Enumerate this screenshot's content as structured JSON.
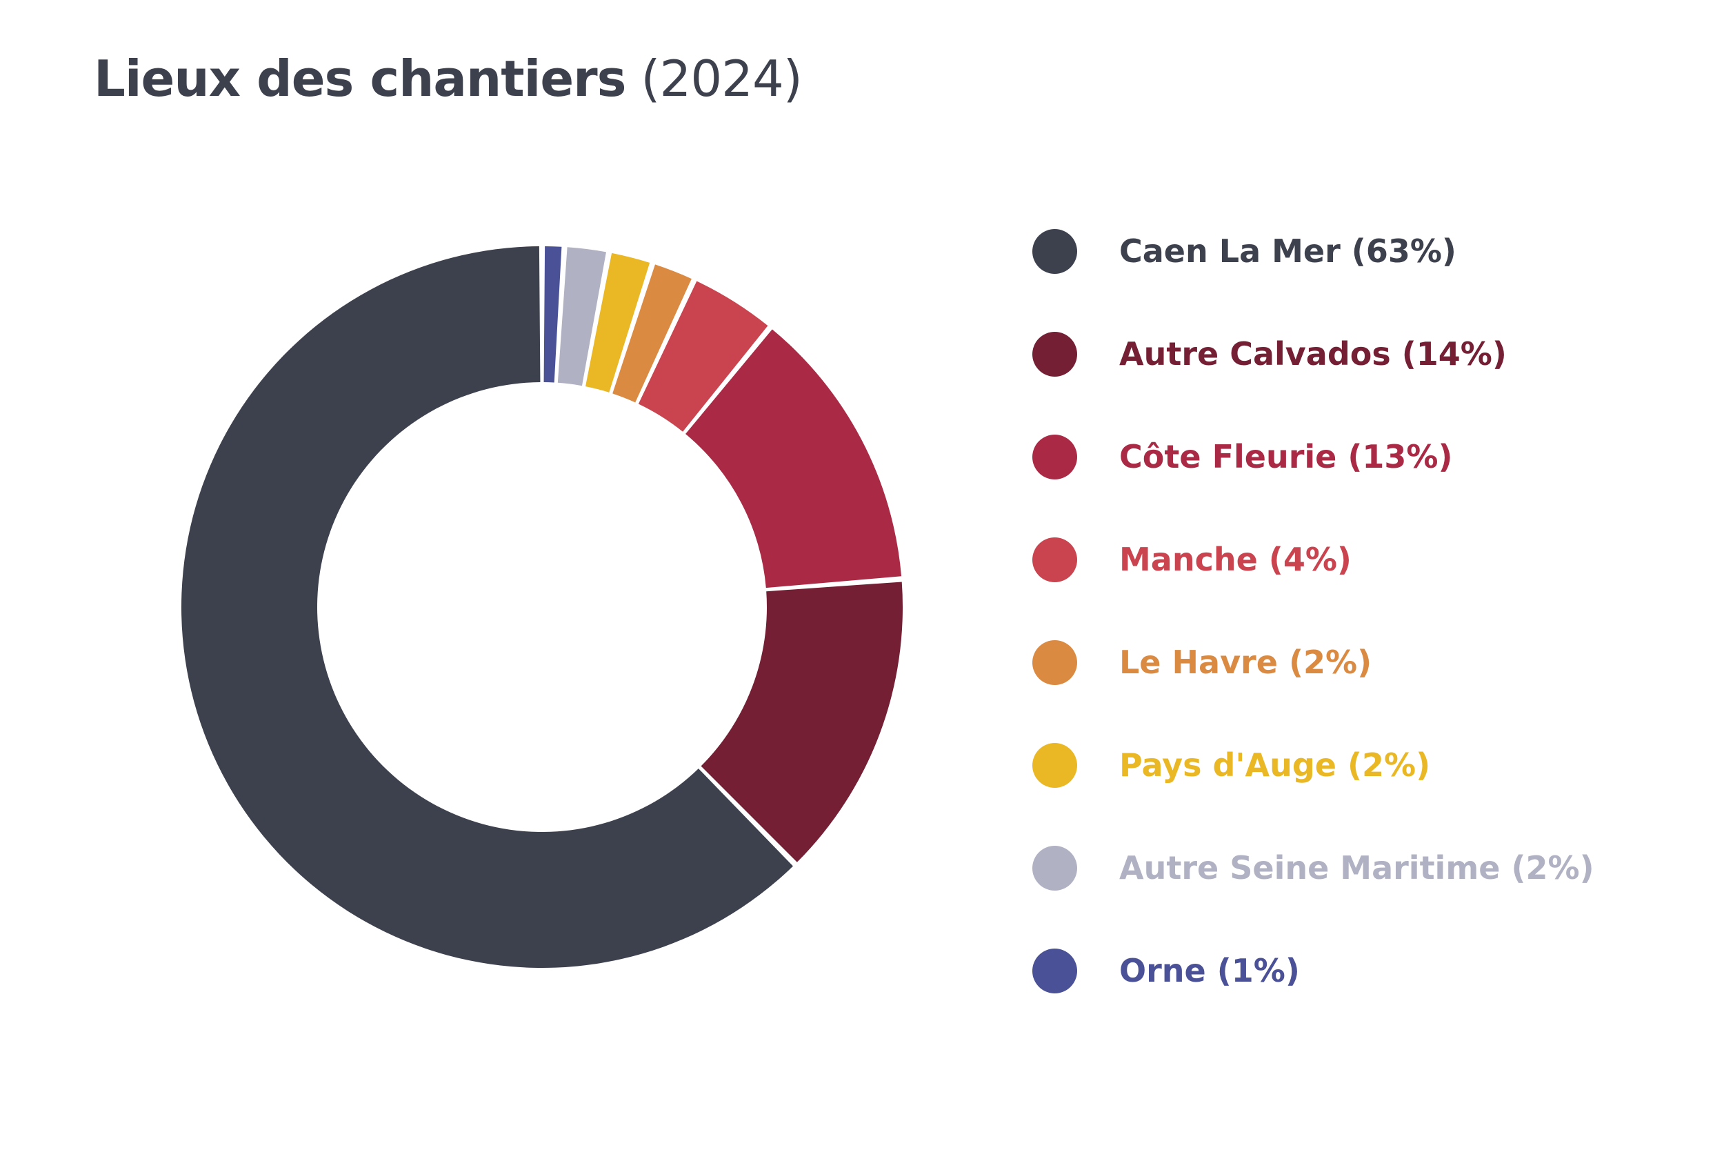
{
  "chart_data": {
    "type": "pie",
    "variant": "donut",
    "title": "Lieux des chantiers",
    "title_year": "(2024)",
    "unit": "%",
    "slices": [
      {
        "label": "Caen La Mer",
        "legend": "Caen La Mer (63%)",
        "value": 63,
        "color": "#3d404d"
      },
      {
        "label": "Autre Calvados",
        "legend": "Autre Calvados (14%)",
        "value": 14,
        "color": "#741f34"
      },
      {
        "label": "Côte Fleurie",
        "legend": "Côte Fleurie (13%)",
        "value": 13,
        "color": "#aa2a46"
      },
      {
        "label": "Manche",
        "legend": "Manche (4%)",
        "value": 4,
        "color": "#c9444f"
      },
      {
        "label": "Le Havre",
        "legend": "Le Havre (2%)",
        "value": 2,
        "color": "#db8a42"
      },
      {
        "label": "Pays d'Auge",
        "legend": "Pays d'Auge (2%)",
        "value": 2,
        "color": "#e9b824"
      },
      {
        "label": "Autre Seine Maritime",
        "legend": "Autre Seine Maritime (2%)",
        "value": 2,
        "color": "#b0b1c3"
      },
      {
        "label": "Orne",
        "legend": "Orne (1%)",
        "value": 1,
        "color": "#4a5196"
      }
    ],
    "legend_position": "right"
  }
}
